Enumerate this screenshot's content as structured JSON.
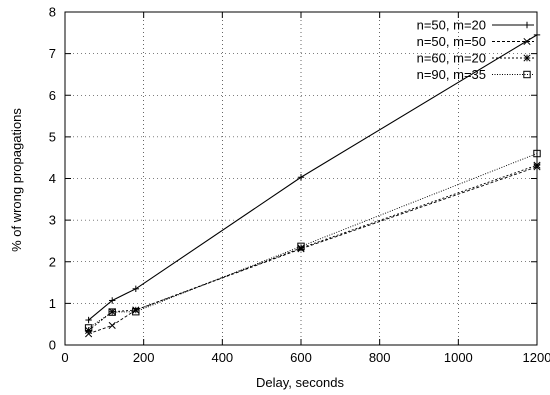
{
  "chart_data": {
    "type": "line",
    "title": "",
    "xlabel": "Delay, seconds",
    "ylabel": "% of wrong propagations",
    "xlim": [
      0,
      1200
    ],
    "ylim": [
      0,
      8
    ],
    "x_ticks": [
      0,
      200,
      400,
      600,
      800,
      1000,
      1200
    ],
    "y_ticks": [
      0,
      1,
      2,
      3,
      4,
      5,
      6,
      7,
      8
    ],
    "grid": true,
    "legend_position": "top-right",
    "series": [
      {
        "name": "n=50, m=20",
        "marker": "plus",
        "dash": "solid",
        "x": [
          60,
          120,
          180,
          600,
          1200
        ],
        "y": [
          0.6,
          1.07,
          1.35,
          4.03,
          7.45
        ]
      },
      {
        "name": "n=50, m=50",
        "marker": "cross",
        "dash": "dashed",
        "x": [
          60,
          120,
          180,
          600,
          1200
        ],
        "y": [
          0.27,
          0.47,
          0.84,
          2.31,
          4.28
        ]
      },
      {
        "name": "n=60, m=20",
        "marker": "star",
        "dash": "dotted",
        "x": [
          60,
          120,
          180,
          600,
          1200
        ],
        "y": [
          0.35,
          0.8,
          0.84,
          2.33,
          4.32
        ]
      },
      {
        "name": "n=90, m=35",
        "marker": "square",
        "dash": "fine-dotted",
        "x": [
          60,
          120,
          180,
          600,
          1200
        ],
        "y": [
          0.41,
          0.79,
          0.8,
          2.37,
          4.6
        ]
      }
    ]
  }
}
